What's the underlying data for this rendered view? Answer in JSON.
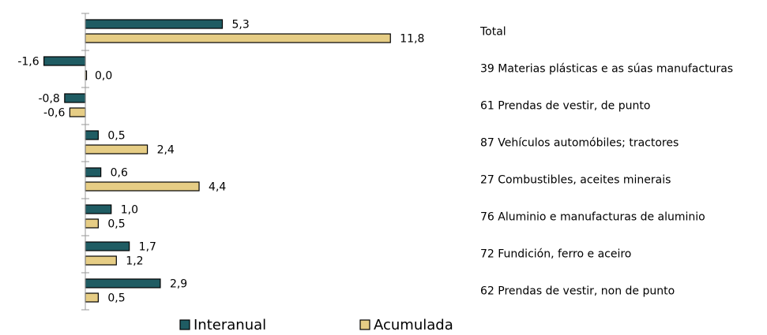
{
  "chart_data": {
    "type": "hbar",
    "categories": [
      "Total",
      "39 Materias plásticas e as súas manufacturas",
      "61 Prendas de vestir, de punto",
      "87 Vehículos automóbiles; tractores",
      "27 Combustibles, aceites minerais",
      "76 Aluminio e manufacturas de aluminio",
      "72 Fundición, ferro e aceiro",
      "62 Prendas de vestir, non de punto"
    ],
    "series": [
      {
        "name": "Interanual",
        "color": "#1f5c63",
        "values": [
          5.3,
          -1.6,
          -0.8,
          0.5,
          0.6,
          1.0,
          1.7,
          2.9
        ],
        "value_labels": [
          "5,3",
          "-1,6",
          "-0,8",
          "0,5",
          "0,6",
          "1,0",
          "1,7",
          "2,9"
        ]
      },
      {
        "name": "Acumulada",
        "color": "#e6cd85",
        "values": [
          11.8,
          0.0,
          -0.6,
          2.4,
          4.4,
          0.5,
          1.2,
          0.5
        ],
        "value_labels": [
          "11,8",
          "0,0",
          "-0,6",
          "2,4",
          "4,4",
          "0,5",
          "1,2",
          "0,5"
        ]
      }
    ],
    "xlim": [
      -3.3,
      15
    ]
  }
}
